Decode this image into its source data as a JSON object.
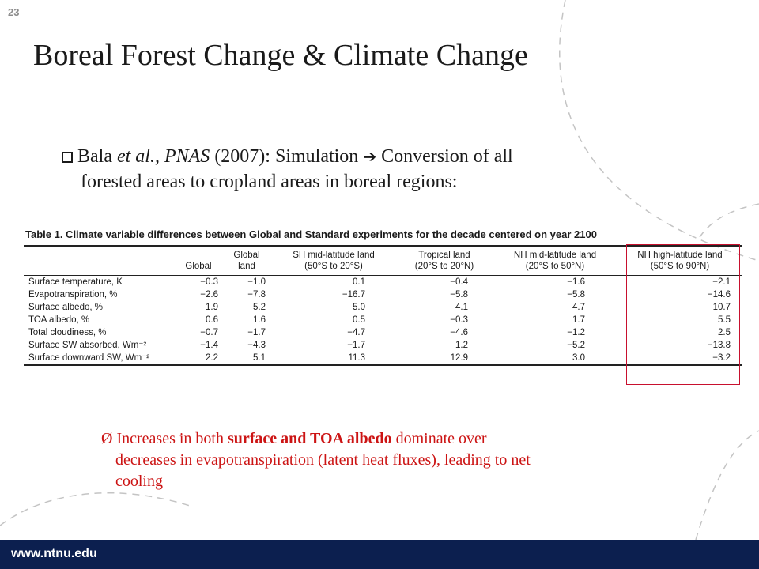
{
  "page_number": "23",
  "title": "Boreal Forest Change & Climate Change",
  "bullet1": {
    "author": "Bala",
    "etal": "et al., PNAS",
    "year": "(2007):  Simulation",
    "arrow": "➔",
    "rest": "Conversion of all",
    "line2": "forested areas to cropland areas in boreal regions:"
  },
  "table": {
    "caption": "Table 1. Climate variable differences between Global and Standard experiments for the decade centered on year 2100",
    "columns": [
      {
        "line1": "",
        "line2": "Global"
      },
      {
        "line1": "Global",
        "line2": "land"
      },
      {
        "line1": "SH mid-latitude land",
        "line2": "(50°S to 20°S)"
      },
      {
        "line1": "Tropical land",
        "line2": "(20°S to 20°N)"
      },
      {
        "line1": "NH mid-latitude land",
        "line2": "(20°S to 50°N)"
      },
      {
        "line1": "NH high-latitude land",
        "line2": "(50°S to 90°N)"
      }
    ],
    "rows": [
      {
        "label": "Surface temperature, K",
        "values": [
          "−0.3",
          "−1.0",
          "0.1",
          "−0.4",
          "−1.6",
          "−2.1"
        ]
      },
      {
        "label": "Evapotranspiration, %",
        "values": [
          "−2.6",
          "−7.8",
          "−16.7",
          "−5.8",
          "−5.8",
          "−14.6"
        ]
      },
      {
        "label": "Surface albedo, %",
        "values": [
          "1.9",
          "5.2",
          "5.0",
          "4.1",
          "4.7",
          "10.7"
        ]
      },
      {
        "label": "TOA albedo, %",
        "values": [
          "0.6",
          "1.6",
          "0.5",
          "−0.3",
          "1.7",
          "5.5"
        ]
      },
      {
        "label": "Total cloudiness, %",
        "values": [
          "−0.7",
          "−1.7",
          "−4.7",
          "−4.6",
          "−1.2",
          "2.5"
        ]
      },
      {
        "label": "Surface SW absorbed, Wm⁻²",
        "values": [
          "−1.4",
          "−4.3",
          "−1.7",
          "1.2",
          "−5.2",
          "−13.8"
        ]
      },
      {
        "label": "Surface downward SW, Wm⁻²",
        "values": [
          "2.2",
          "5.1",
          "11.3",
          "12.9",
          "3.0",
          "−3.2"
        ]
      }
    ]
  },
  "bullet2": {
    "marker": "Ø",
    "pre": "Increases in both ",
    "bold": "surface and TOA albedo",
    "post": " dominate over",
    "line2": "decreases in evapotranspiration (latent heat fluxes), leading to net",
    "line3": "cooling"
  },
  "footer": {
    "url": "www.ntnu.edu"
  },
  "colors": {
    "footer_bg": "#0c1f4f",
    "accent_red": "#cc1414",
    "highlight_box": "#c8102e"
  }
}
